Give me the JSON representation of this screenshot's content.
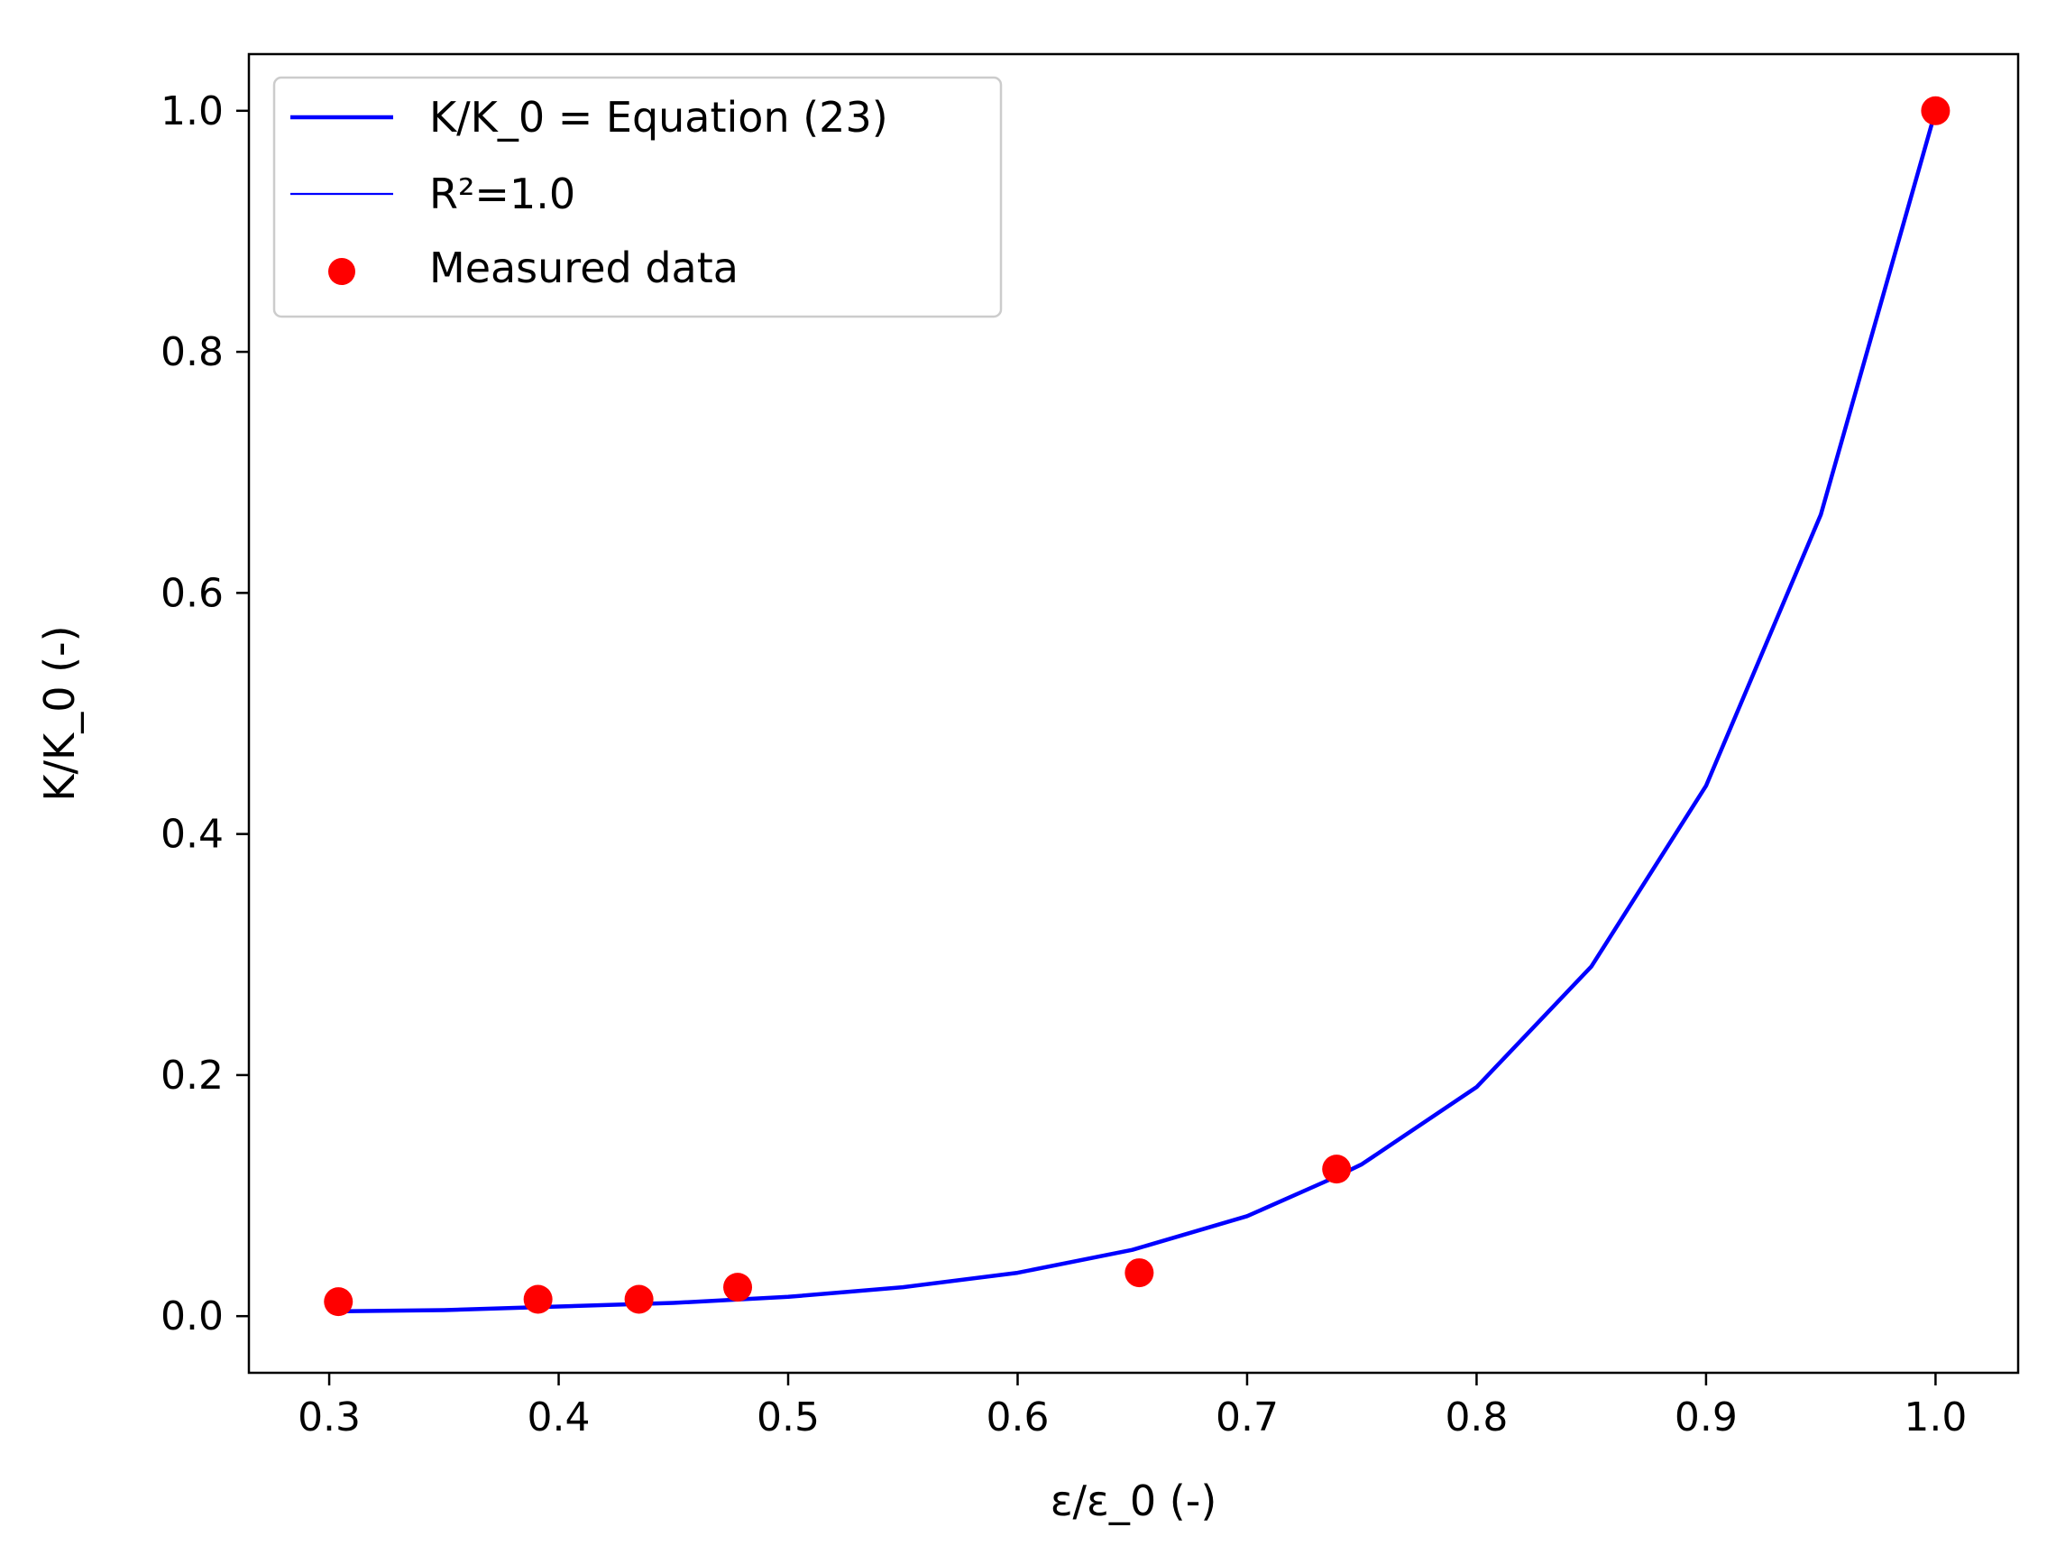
{
  "chart_data": {
    "type": "line",
    "title": "",
    "xlabel": "ε/ε_0 (-)",
    "ylabel": "K/K_0 (-)",
    "xlim": [
      0.265,
      1.036
    ],
    "ylim": [
      -0.047,
      1.047
    ],
    "x_ticks": [
      0.3,
      0.4,
      0.5,
      0.6,
      0.7,
      0.8,
      0.9,
      1.0
    ],
    "x_tick_labels": [
      "0.3",
      "0.4",
      "0.5",
      "0.6",
      "0.7",
      "0.8",
      "0.9",
      "1.0"
    ],
    "y_ticks": [
      0.0,
      0.2,
      0.4,
      0.6,
      0.8,
      1.0
    ],
    "y_tick_labels": [
      "0.0",
      "0.2",
      "0.4",
      "0.6",
      "0.8",
      "1.0"
    ],
    "grid": false,
    "legend_position": "top-left",
    "series": [
      {
        "name": "K/K_0 = Equation (23)",
        "kind": "line",
        "color": "#0000ff",
        "x": [
          0.304,
          0.35,
          0.4,
          0.45,
          0.5,
          0.55,
          0.6,
          0.65,
          0.7,
          0.738,
          0.75,
          0.8,
          0.85,
          0.9,
          0.95,
          1.0
        ],
        "y": [
          0.004,
          0.005,
          0.008,
          0.011,
          0.016,
          0.024,
          0.036,
          0.055,
          0.083,
          0.115,
          0.126,
          0.19,
          0.29,
          0.44,
          0.665,
          1.0
        ]
      },
      {
        "name": "R²=1.0",
        "kind": "legend-only-line",
        "color": "#0000ff",
        "x": [],
        "y": []
      },
      {
        "name": "Measured data",
        "kind": "scatter",
        "color": "#ff0000",
        "x": [
          0.304,
          0.391,
          0.435,
          0.478,
          0.653,
          0.739,
          1.0
        ],
        "y": [
          0.012,
          0.014,
          0.014,
          0.024,
          0.036,
          0.122,
          1.0
        ]
      }
    ]
  }
}
